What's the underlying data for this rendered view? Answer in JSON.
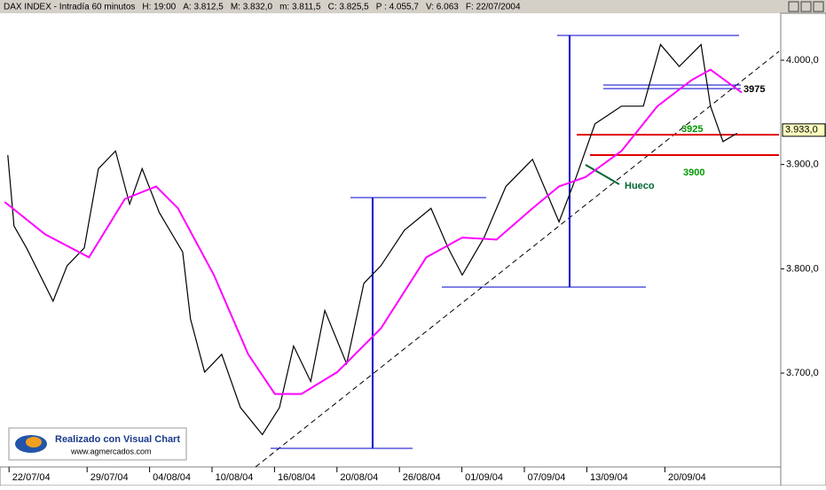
{
  "chart_data": {
    "type": "line",
    "header": [
      "DAX INDEX - Intradía 60 minutos",
      "H: 19:00",
      "A: 3.812,5",
      "M: 3.832,0",
      "m: 3.811,5",
      "C: 3.825,5",
      "P : 4.055,7",
      "V: 6.063",
      "F: 22/07/2004"
    ],
    "xlim": [
      -2,
      48
    ],
    "xticks": [
      {
        "value": 0,
        "label": "22/07/04"
      },
      {
        "value": 5,
        "label": "29/07/04"
      },
      {
        "value": 9,
        "label": "04/08/04"
      },
      {
        "value": 13,
        "label": "10/08/04"
      },
      {
        "value": 17,
        "label": "16/08/04"
      },
      {
        "value": 21,
        "label": "20/08/04"
      },
      {
        "value": 25,
        "label": "26/08/04"
      },
      {
        "value": 29,
        "label": "01/09/04"
      },
      {
        "value": 33,
        "label": "07/09/04"
      },
      {
        "value": 37,
        "label": "13/09/04"
      },
      {
        "value": 42,
        "label": "20/09/04"
      }
    ],
    "ylim": [
      3610,
      4045
    ],
    "yticks": [
      {
        "value": 3700,
        "label": "3.700,0"
      },
      {
        "value": 3800,
        "label": "3.800,0"
      },
      {
        "value": 3900,
        "label": "3.900,0"
      },
      {
        "value": 4000,
        "label": "4.000,0"
      }
    ],
    "series": [
      {
        "color": "#000000",
        "x": [
          -1.5,
          -1.1,
          -0.3,
          1.4,
          2.3,
          3.4,
          4.3,
          5.4,
          6.3,
          7.1,
          8.2,
          9.7,
          10.2,
          11.1,
          12.2,
          13.4,
          14.8,
          15.9,
          16.8,
          17.9,
          18.8,
          20.2,
          21.3,
          22.4,
          23.9,
          25.6,
          26.7,
          27.6,
          29.0,
          30.4,
          32.1,
          33.8,
          34.9,
          36.1,
          37.8,
          39.2,
          40.3,
          41.5,
          42.9,
          43.5,
          44.3,
          45.2
        ],
        "values": [
          3909,
          3841,
          3820,
          3769,
          3803,
          3820,
          3896,
          3913,
          3862,
          3896,
          3854,
          3816,
          3752,
          3701,
          3718,
          3667,
          3641,
          3667,
          3726,
          3692,
          3760,
          3709,
          3786,
          3803,
          3837,
          3858,
          3820,
          3794,
          3830,
          3879,
          3905,
          3845,
          3888,
          3939,
          3956,
          3956,
          4015,
          3994,
          4015,
          3956,
          3922,
          3930
        ]
      },
      {
        "color": "#ff00ff",
        "x": [
          -1.7,
          0.9,
          3.7,
          6.0,
          8.0,
          9.4,
          11.7,
          13.9,
          15.6,
          17.3,
          19.6,
          22.4,
          25.3,
          27.6,
          29.8,
          32.1,
          33.8,
          35.5,
          37.8,
          40.1,
          42.3,
          43.5,
          45.5
        ],
        "values": [
          3864,
          3833,
          3811,
          3867,
          3879,
          3858,
          3794,
          3718,
          3680,
          3680,
          3701,
          3743,
          3811,
          3830,
          3828,
          3858,
          3879,
          3888,
          3913,
          3956,
          3981,
          3991,
          3969
        ]
      }
    ],
    "last_value": 3933,
    "last_label": "3.933,0",
    "annotations": [
      "3975",
      "3925",
      "3900",
      "Hueco"
    ],
    "logo": [
      "Realizado con Visual Chart",
      "www.agmercados.com"
    ]
  }
}
